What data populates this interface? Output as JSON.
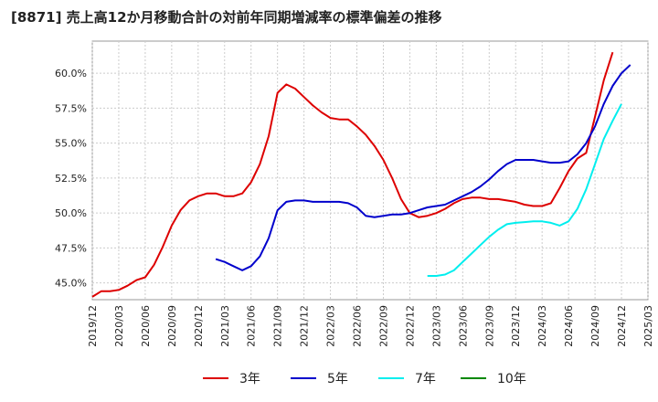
{
  "chart_data": {
    "type": "line",
    "title": "[8871]  売上高12か月移動合計の対前年同期増減率の標準偏差の推移",
    "xlabel": "",
    "ylabel": "",
    "ylim": [
      43.8,
      62.3
    ],
    "yticks": [
      45.0,
      47.5,
      50.0,
      52.5,
      55.0,
      57.5,
      60.0
    ],
    "ytick_labels": [
      "45.0%",
      "47.5%",
      "50.0%",
      "52.5%",
      "55.0%",
      "57.5%",
      "60.0%"
    ],
    "x_start": "2019-12",
    "x_end": "2025-03",
    "xtick_labels": [
      "2019/12",
      "2020/03",
      "2020/06",
      "2020/09",
      "2020/12",
      "2021/03",
      "2021/06",
      "2021/09",
      "2021/12",
      "2022/03",
      "2022/06",
      "2022/09",
      "2022/12",
      "2023/03",
      "2023/06",
      "2023/09",
      "2023/12",
      "2024/03",
      "2024/06",
      "2024/09",
      "2024/12",
      "2025/03"
    ],
    "grid": true,
    "legend_position": "bottom",
    "series": [
      {
        "name": "3年",
        "color": "#dd0000",
        "start": "2019-12",
        "values": [
          44.0,
          44.4,
          44.4,
          44.5,
          44.8,
          45.2,
          45.4,
          46.3,
          47.6,
          49.1,
          50.2,
          50.9,
          51.2,
          51.4,
          51.4,
          51.2,
          51.2,
          51.4,
          52.2,
          53.5,
          55.5,
          58.6,
          59.2,
          58.9,
          58.3,
          57.7,
          57.2,
          56.8,
          56.7,
          56.7,
          56.2,
          55.6,
          54.8,
          53.8,
          52.5,
          51.0,
          50.0,
          49.7,
          49.8,
          50.0,
          50.3,
          50.7,
          51.0,
          51.1,
          51.1,
          51.0,
          51.0,
          50.9,
          50.8,
          50.6,
          50.5,
          50.5,
          50.7,
          51.8,
          53.0,
          53.9,
          54.3,
          56.9,
          59.5,
          61.5
        ]
      },
      {
        "name": "5年",
        "color": "#0000cc",
        "start": "2021-02",
        "values": [
          46.7,
          46.5,
          46.2,
          45.9,
          46.2,
          46.9,
          48.2,
          50.2,
          50.8,
          50.9,
          50.9,
          50.8,
          50.8,
          50.8,
          50.8,
          50.7,
          50.4,
          49.8,
          49.7,
          49.8,
          49.9,
          49.9,
          50.0,
          50.2,
          50.4,
          50.5,
          50.6,
          50.9,
          51.2,
          51.5,
          51.9,
          52.4,
          53.0,
          53.5,
          53.8,
          53.8,
          53.8,
          53.7,
          53.6,
          53.6,
          53.7,
          54.2,
          55.0,
          56.2,
          57.8,
          59.1,
          60.0,
          60.6
        ]
      },
      {
        "name": "7年",
        "color": "#00eeee",
        "start": "2023-02",
        "values": [
          45.5,
          45.5,
          45.6,
          45.9,
          46.5,
          47.1,
          47.7,
          48.3,
          48.8,
          49.2,
          49.3,
          49.35,
          49.4,
          49.4,
          49.3,
          49.1,
          49.4,
          50.3,
          51.7,
          53.5,
          55.3,
          56.6,
          57.8
        ]
      },
      {
        "name": "10年",
        "color": "#008800",
        "start": "2024-12",
        "values": []
      }
    ]
  }
}
